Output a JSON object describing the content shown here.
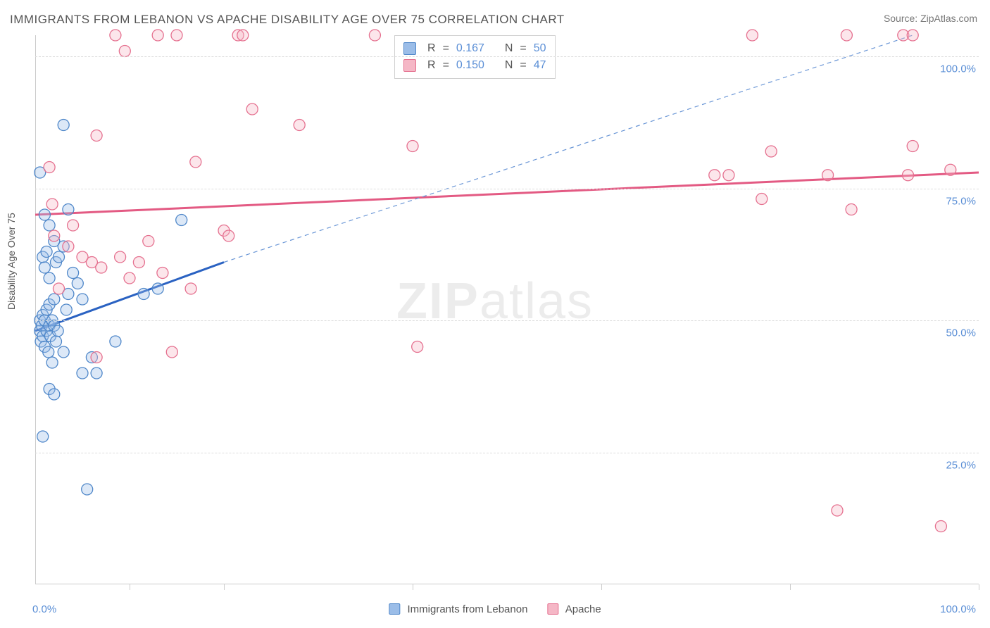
{
  "title": "IMMIGRANTS FROM LEBANON VS APACHE DISABILITY AGE OVER 75 CORRELATION CHART",
  "source_label": "Source: ZipAtlas.com",
  "watermark_zip": "ZIP",
  "watermark_atlas": "atlas",
  "ylabel": "Disability Age Over 75",
  "chart": {
    "type": "scatter",
    "background_color": "#ffffff",
    "grid_color": "#dddddd",
    "axis_color": "#cccccc",
    "tick_label_color": "#5b8fd6",
    "axis_label_color": "#555555",
    "title_color": "#555555",
    "title_fontsize": 17,
    "label_fontsize": 14,
    "tick_fontsize": 15,
    "xlim": [
      0,
      100
    ],
    "ylim": [
      0,
      104
    ],
    "yticks": [
      25,
      50,
      75,
      100
    ],
    "ytick_labels": [
      "25.0%",
      "50.0%",
      "75.0%",
      "100.0%"
    ],
    "xticks": [
      0,
      10,
      20,
      40,
      60,
      80,
      100
    ],
    "xtick_labels": {
      "0": "0.0%",
      "100": "100.0%"
    },
    "marker_radius": 8,
    "marker_fill_opacity": 0.35,
    "marker_stroke_width": 1.3,
    "series": [
      {
        "key": "lebanon",
        "label": "Immigrants from Lebanon",
        "color_fill": "#9bbde8",
        "color_stroke": "#4f87c9",
        "r_value": "0.167",
        "n_value": "50",
        "trend_solid": {
          "x1": 0,
          "y1": 48,
          "x2": 20,
          "y2": 61,
          "color": "#2a62c2",
          "width": 3
        },
        "trend_dashed": {
          "x1": 20,
          "y1": 61,
          "x2": 93,
          "y2": 104,
          "color": "#6a96d6",
          "width": 1.2,
          "dash": "6 5"
        },
        "points": [
          [
            0.5,
            48
          ],
          [
            0.5,
            50
          ],
          [
            0.6,
            46
          ],
          [
            0.7,
            49
          ],
          [
            0.8,
            47
          ],
          [
            0.8,
            51
          ],
          [
            1.0,
            45
          ],
          [
            1.0,
            50
          ],
          [
            1.2,
            48
          ],
          [
            1.2,
            52
          ],
          [
            1.4,
            44
          ],
          [
            1.5,
            49
          ],
          [
            1.5,
            53
          ],
          [
            1.6,
            47
          ],
          [
            1.8,
            50
          ],
          [
            1.8,
            42
          ],
          [
            2.0,
            49
          ],
          [
            2.0,
            54
          ],
          [
            2.2,
            46
          ],
          [
            2.4,
            48
          ],
          [
            0.8,
            62
          ],
          [
            1.0,
            60
          ],
          [
            1.2,
            63
          ],
          [
            1.5,
            58
          ],
          [
            2.0,
            65
          ],
          [
            2.2,
            61
          ],
          [
            2.5,
            62
          ],
          [
            3.0,
            64
          ],
          [
            3.3,
            52
          ],
          [
            3.5,
            55
          ],
          [
            4.0,
            59
          ],
          [
            4.5,
            57
          ],
          [
            5.0,
            54
          ],
          [
            1.0,
            70
          ],
          [
            1.5,
            68
          ],
          [
            0.5,
            78
          ],
          [
            3.0,
            87
          ],
          [
            3.5,
            71
          ],
          [
            15.5,
            69
          ],
          [
            5.0,
            40
          ],
          [
            6.5,
            40
          ],
          [
            1.5,
            37
          ],
          [
            2.0,
            36
          ],
          [
            3.0,
            44
          ],
          [
            6.0,
            43
          ],
          [
            8.5,
            46
          ],
          [
            11.5,
            55
          ],
          [
            13.0,
            56
          ],
          [
            0.8,
            28
          ],
          [
            5.5,
            18
          ]
        ]
      },
      {
        "key": "apache",
        "label": "Apache",
        "color_fill": "#f5b7c6",
        "color_stroke": "#e5708f",
        "r_value": "0.150",
        "n_value": "47",
        "trend_solid": {
          "x1": 0,
          "y1": 70,
          "x2": 100,
          "y2": 78,
          "color": "#e35a83",
          "width": 3
        },
        "points": [
          [
            8.5,
            104
          ],
          [
            13.0,
            104
          ],
          [
            15.0,
            104
          ],
          [
            21.5,
            104
          ],
          [
            22.0,
            104
          ],
          [
            36.0,
            104
          ],
          [
            76.0,
            104
          ],
          [
            86.0,
            104
          ],
          [
            92.0,
            104
          ],
          [
            93.0,
            104
          ],
          [
            9.5,
            101
          ],
          [
            23.0,
            90
          ],
          [
            28.0,
            87
          ],
          [
            40.0,
            83
          ],
          [
            1.5,
            79
          ],
          [
            6.5,
            85
          ],
          [
            17.0,
            80
          ],
          [
            78.0,
            82
          ],
          [
            72.0,
            77.5
          ],
          [
            73.5,
            77.5
          ],
          [
            84.0,
            77.5
          ],
          [
            92.5,
            77.5
          ],
          [
            97.0,
            78.5
          ],
          [
            93.0,
            83
          ],
          [
            77.0,
            73
          ],
          [
            86.5,
            71
          ],
          [
            1.8,
            72
          ],
          [
            2.0,
            66
          ],
          [
            3.5,
            64
          ],
          [
            4.0,
            68
          ],
          [
            5.0,
            62
          ],
          [
            6.0,
            61
          ],
          [
            7.0,
            60
          ],
          [
            9.0,
            62
          ],
          [
            10.0,
            58
          ],
          [
            11.0,
            61
          ],
          [
            12.0,
            65
          ],
          [
            13.5,
            59
          ],
          [
            16.5,
            56
          ],
          [
            20.0,
            67
          ],
          [
            20.5,
            66
          ],
          [
            14.5,
            44
          ],
          [
            40.5,
            45
          ],
          [
            6.5,
            43
          ],
          [
            2.5,
            56
          ],
          [
            85.0,
            14
          ],
          [
            96.0,
            11
          ]
        ]
      }
    ]
  },
  "stats_box": {
    "r_label": "R",
    "n_label": "N",
    "eq": "="
  },
  "bottom_legend_labels": {
    "lebanon": "Immigrants from Lebanon",
    "apache": "Apache"
  }
}
